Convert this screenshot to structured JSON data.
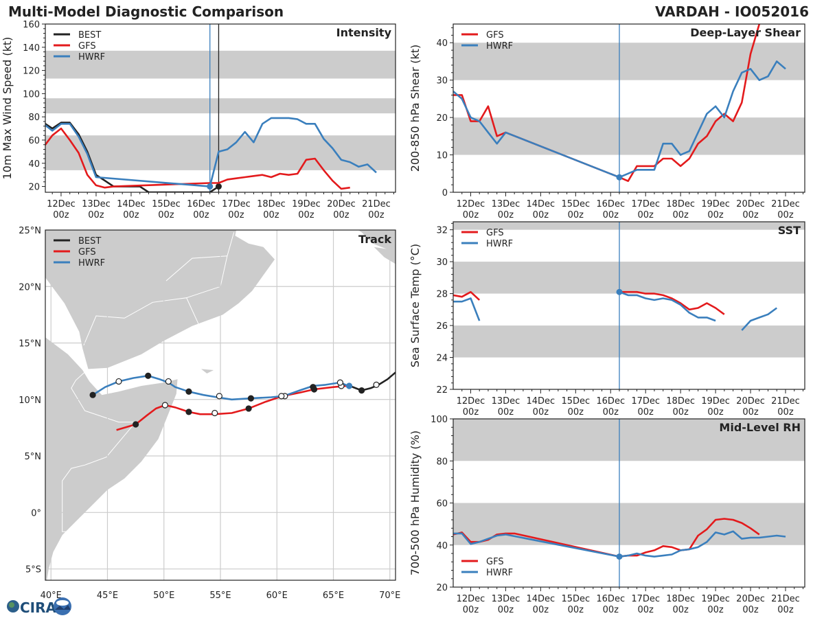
{
  "header": {
    "title": "Multi-Model Diagnostic Comparison",
    "storm": "VARDAH - IO052016"
  },
  "colors": {
    "BEST": "#222222",
    "GFS": "#e31a1c",
    "HWRF": "#3a7fbd",
    "band": "#cccccc",
    "grid": "#cccccc",
    "land": "#cccccc"
  },
  "logo": {
    "text": "CIRA"
  },
  "time_ticks": [
    "12Dec\n00z",
    "13Dec\n00z",
    "14Dec\n00z",
    "15Dec\n00z",
    "16Dec\n00z",
    "17Dec\n00z",
    "18Dec\n00z",
    "19Dec\n00z",
    "20Dec\n00z",
    "21Dec\n00z"
  ],
  "chart_data": [
    {
      "type": "line",
      "id": "intensity",
      "title": "Intensity",
      "xlabel": "",
      "ylabel": "10m Max Wind Speed (kt)",
      "x_unit": "days since 12Dec 00z",
      "xlim": [
        -0.45,
        9.55
      ],
      "ylim": [
        15,
        160
      ],
      "yticks": [
        20,
        40,
        60,
        80,
        100,
        120,
        140,
        160
      ],
      "bands": [
        [
          34,
          64
        ],
        [
          83,
          96
        ],
        [
          113,
          137
        ]
      ],
      "vlines": [
        {
          "x": 4.25,
          "color": "HWRF"
        },
        {
          "x": 4.5,
          "color": "BEST"
        }
      ],
      "legend": [
        "BEST",
        "GFS",
        "HWRF"
      ],
      "legend_position": "top-left",
      "series": [
        {
          "name": "BEST",
          "x": [
            -0.5,
            -0.25,
            0,
            0.25,
            0.5,
            0.75,
            1,
            1.25,
            1.5,
            1.75,
            2,
            2.25,
            2.5,
            2.75,
            3,
            3.25,
            3.5,
            3.75,
            4,
            4.25,
            4.5
          ],
          "y": [
            75,
            70,
            75,
            75,
            65,
            50,
            30,
            25,
            20,
            20,
            20,
            20,
            15,
            15,
            15,
            15,
            15,
            15,
            15,
            15,
            20
          ],
          "end_marker": true
        },
        {
          "name": "GFS",
          "x": [
            -0.5,
            -0.25,
            0,
            0.25,
            0.5,
            0.75,
            1,
            1.25,
            1.5,
            4.25,
            4.5,
            4.75,
            5,
            5.25,
            5.5,
            5.75,
            6,
            6.25,
            6.5,
            6.75,
            7,
            7.25,
            7.5,
            7.75,
            8,
            8.25
          ],
          "y": [
            54,
            64,
            70,
            60,
            49,
            30,
            21,
            19,
            20,
            23,
            23,
            26,
            27,
            28,
            29,
            30,
            28,
            31,
            30,
            31,
            43,
            44,
            34,
            25,
            18,
            19
          ]
        },
        {
          "name": "HWRF",
          "x": [
            -0.5,
            -0.25,
            0,
            0.25,
            0.5,
            0.75,
            1,
            4.25,
            4.5,
            4.75,
            5,
            5.25,
            5.5,
            5.75,
            6,
            6.25,
            6.5,
            6.75,
            7,
            7.25,
            7.5,
            7.75,
            8,
            8.25,
            8.5,
            8.75,
            9
          ],
          "y": [
            74,
            68,
            74,
            74,
            63,
            48,
            28,
            20,
            50,
            52,
            58,
            67,
            58,
            74,
            79,
            79,
            79,
            78,
            74,
            74,
            61,
            53,
            43,
            41,
            37,
            39,
            32
          ],
          "start_marker_at": 4.25
        }
      ]
    },
    {
      "type": "line",
      "id": "shear",
      "title": "Deep-Layer Shear",
      "ylabel": "200-850 hPa Shear (kt)",
      "xlim": [
        -0.5,
        9.55
      ],
      "ylim": [
        0,
        45
      ],
      "yticks": [
        0,
        10,
        20,
        30,
        40
      ],
      "bands": [
        [
          10,
          20
        ],
        [
          30,
          40
        ]
      ],
      "vlines": [
        {
          "x": 4.25,
          "color": "HWRF"
        }
      ],
      "legend": [
        "GFS",
        "HWRF"
      ],
      "legend_position": "top-left",
      "series": [
        {
          "name": "GFS",
          "x": [
            -0.5,
            -0.25,
            0,
            0.25,
            0.5,
            0.75,
            1,
            4.25,
            4.5,
            4.75,
            5,
            5.25,
            5.5,
            5.75,
            6,
            6.25,
            6.5,
            6.75,
            7,
            7.25,
            7.5,
            7.75,
            8,
            8.25
          ],
          "y": [
            26,
            26,
            19,
            19,
            23,
            15,
            16,
            4,
            3,
            7,
            7,
            7,
            9,
            9,
            7,
            9,
            13,
            15,
            19,
            21,
            19,
            24,
            37,
            45
          ]
        },
        {
          "name": "HWRF",
          "x": [
            -0.5,
            -0.25,
            0,
            0.25,
            0.5,
            0.75,
            1,
            4.25,
            4.5,
            4.75,
            5,
            5.25,
            5.5,
            5.75,
            6,
            6.25,
            6.5,
            6.75,
            7,
            7.25,
            7.5,
            7.75,
            8,
            8.25,
            8.5,
            8.75,
            9
          ],
          "y": [
            27,
            25,
            20,
            19,
            16,
            13,
            16,
            4,
            5,
            6,
            6,
            6,
            13,
            13,
            10,
            11,
            16,
            21,
            23,
            20,
            27,
            32,
            33,
            30,
            31,
            35,
            33
          ],
          "start_marker_at": 4.25
        }
      ]
    },
    {
      "type": "line",
      "id": "sst",
      "title": "SST",
      "ylabel": "Sea Surface Temp (°C)",
      "xlim": [
        -0.5,
        9.55
      ],
      "ylim": [
        22,
        32.5
      ],
      "yticks": [
        22,
        24,
        26,
        28,
        30,
        32
      ],
      "bands": [
        [
          24,
          26
        ],
        [
          28,
          30
        ],
        [
          32,
          32.5
        ]
      ],
      "vlines": [
        {
          "x": 4.25,
          "color": "HWRF"
        }
      ],
      "legend": [
        "GFS",
        "HWRF"
      ],
      "legend_position": "top-left",
      "series": [
        {
          "name": "GFS",
          "segments": [
            {
              "x": [
                -0.5,
                -0.25,
                0,
                0.25
              ],
              "y": [
                27.9,
                27.8,
                28.1,
                27.6
              ]
            },
            {
              "x": [
                4.25,
                4.5,
                4.75,
                5,
                5.25,
                5.5,
                5.75,
                6,
                6.25,
                6.5,
                6.75,
                7,
                7.25
              ],
              "y": [
                28.1,
                28.1,
                28.1,
                28.0,
                28.0,
                27.9,
                27.7,
                27.4,
                27.0,
                27.1,
                27.4,
                27.1,
                26.7
              ]
            }
          ]
        },
        {
          "name": "HWRF",
          "segments": [
            {
              "x": [
                -0.5,
                -0.25,
                0,
                0.25
              ],
              "y": [
                27.5,
                27.5,
                27.7,
                26.3
              ]
            },
            {
              "x": [
                4.25,
                4.5,
                4.75,
                5,
                5.25,
                5.5,
                5.75,
                6,
                6.25,
                6.5,
                6.75,
                7
              ],
              "y": [
                28.1,
                27.9,
                27.9,
                27.7,
                27.6,
                27.7,
                27.6,
                27.3,
                26.8,
                26.5,
                26.5,
                26.3
              ]
            },
            {
              "x": [
                7.75,
                8,
                8.25,
                8.5,
                8.75
              ],
              "y": [
                25.7,
                26.3,
                26.5,
                26.7,
                27.1
              ]
            }
          ],
          "start_marker_at": 4.25
        }
      ]
    },
    {
      "type": "line",
      "id": "rh",
      "title": "Mid-Level RH",
      "ylabel": "700-500 hPa Humidity (%)",
      "xlim": [
        -0.5,
        9.55
      ],
      "ylim": [
        20,
        100
      ],
      "yticks": [
        20,
        40,
        60,
        80,
        100
      ],
      "bands": [
        [
          40,
          60
        ],
        [
          80,
          100
        ]
      ],
      "vlines": [
        {
          "x": 4.25,
          "color": "HWRF"
        }
      ],
      "legend": [
        "GFS",
        "HWRF"
      ],
      "legend_position": "bottom-left",
      "series": [
        {
          "name": "GFS",
          "x": [
            -0.5,
            -0.25,
            0,
            0.25,
            0.5,
            0.75,
            1,
            1.25,
            4.25,
            4.5,
            4.75,
            5,
            5.25,
            5.5,
            5.75,
            6,
            6.25,
            6.5,
            6.75,
            7,
            7.25,
            7.5,
            7.75,
            8,
            8.25
          ],
          "y": [
            45,
            46,
            41.5,
            41.5,
            42.5,
            45,
            45.5,
            45.5,
            34.5,
            35,
            35,
            36.5,
            37.5,
            39.5,
            39,
            37.5,
            38,
            44.5,
            47.5,
            52,
            52.5,
            52,
            50.5,
            48,
            45
          ]
        },
        {
          "name": "HWRF",
          "x": [
            -0.5,
            -0.25,
            0,
            0.25,
            0.5,
            0.75,
            1,
            4.25,
            4.5,
            4.75,
            5,
            5.25,
            5.5,
            5.75,
            6,
            6.25,
            6.5,
            6.75,
            7,
            7.25,
            7.5,
            7.75,
            8,
            8.25,
            8.5,
            8.75,
            9
          ],
          "y": [
            45.5,
            45.5,
            40.5,
            41.5,
            43,
            44.5,
            45,
            34.5,
            35,
            36,
            35,
            34.5,
            35,
            35.5,
            37.5,
            38,
            39,
            41.5,
            46,
            45,
            46.5,
            43,
            43.5,
            43.5,
            44,
            44.5,
            44
          ],
          "start_marker_at": 4.25
        }
      ]
    },
    {
      "type": "map",
      "id": "track",
      "title": "Track",
      "lon_range": [
        39.5,
        70.5
      ],
      "lat_range": [
        -6,
        25
      ],
      "lon_ticks": [
        "40°E",
        "45°E",
        "50°E",
        "55°E",
        "60°E",
        "65°E",
        "70°E"
      ],
      "lat_ticks": [
        "25°N",
        "20°N",
        "15°N",
        "10°N",
        "5°N",
        "0°",
        "5°S"
      ],
      "lon_tick_values": [
        40,
        45,
        50,
        55,
        60,
        65,
        70
      ],
      "lat_tick_values": [
        25,
        20,
        15,
        10,
        5,
        0,
        -5
      ],
      "legend": [
        "BEST",
        "GFS",
        "HWRF"
      ],
      "legend_position": "top-left",
      "series": [
        {
          "name": "BEST",
          "points": [
            [
              66.2,
              11.3
            ],
            [
              67.5,
              10.8
            ],
            [
              68.3,
              11.0
            ],
            [
              69.0,
              11.3
            ],
            [
              69.8,
              11.8
            ],
            [
              70.5,
              12.4
            ]
          ],
          "markers": [
            {
              "lon": 67.5,
              "lat": 10.8,
              "fill": "dark"
            },
            {
              "lon": 68.8,
              "lat": 11.3,
              "fill": "white"
            }
          ]
        },
        {
          "name": "GFS",
          "points": [
            [
              45.8,
              7.3
            ],
            [
              47.5,
              7.8
            ],
            [
              48.5,
              8.6
            ],
            [
              49.3,
              9.2
            ],
            [
              50.1,
              9.5
            ],
            [
              51.0,
              9.3
            ],
            [
              52.2,
              8.9
            ],
            [
              53.2,
              8.7
            ],
            [
              54.5,
              8.7
            ],
            [
              56.0,
              8.8
            ],
            [
              57.5,
              9.2
            ],
            [
              59.0,
              9.8
            ],
            [
              60.5,
              10.3
            ],
            [
              62.0,
              10.6
            ],
            [
              63.3,
              10.9
            ],
            [
              65.0,
              11.1
            ],
            [
              66.2,
              11.2
            ]
          ],
          "markers": [
            {
              "lon": 47.5,
              "lat": 7.8,
              "fill": "dark"
            },
            {
              "lon": 50.1,
              "lat": 9.5,
              "fill": "white"
            },
            {
              "lon": 52.2,
              "lat": 8.9,
              "fill": "dark"
            },
            {
              "lon": 54.5,
              "lat": 8.8,
              "fill": "white"
            },
            {
              "lon": 57.5,
              "lat": 9.2,
              "fill": "dark"
            },
            {
              "lon": 60.7,
              "lat": 10.3,
              "fill": "white"
            },
            {
              "lon": 63.3,
              "lat": 10.9,
              "fill": "dark"
            },
            {
              "lon": 65.7,
              "lat": 11.2,
              "fill": "white"
            }
          ]
        },
        {
          "name": "HWRF",
          "points": [
            [
              43.7,
              10.4
            ],
            [
              44.8,
              11.1
            ],
            [
              46.0,
              11.6
            ],
            [
              47.3,
              11.9
            ],
            [
              48.6,
              12.1
            ],
            [
              49.6,
              11.8
            ],
            [
              50.4,
              11.5
            ],
            [
              51.0,
              11.1
            ],
            [
              52.2,
              10.7
            ],
            [
              53.5,
              10.4
            ],
            [
              54.7,
              10.2
            ],
            [
              56.0,
              10.0
            ],
            [
              57.7,
              10.1
            ],
            [
              59.5,
              10.2
            ],
            [
              60.6,
              10.3
            ],
            [
              62.0,
              10.8
            ],
            [
              63.2,
              11.2
            ],
            [
              64.3,
              11.3
            ],
            [
              65.6,
              11.5
            ],
            [
              66.3,
              11.2
            ]
          ],
          "markers": [
            {
              "lon": 43.7,
              "lat": 10.4,
              "fill": "dark"
            },
            {
              "lon": 46.0,
              "lat": 11.6,
              "fill": "white"
            },
            {
              "lon": 48.6,
              "lat": 12.1,
              "fill": "dark"
            },
            {
              "lon": 50.4,
              "lat": 11.6,
              "fill": "white"
            },
            {
              "lon": 52.2,
              "lat": 10.7,
              "fill": "dark"
            },
            {
              "lon": 54.9,
              "lat": 10.3,
              "fill": "white"
            },
            {
              "lon": 57.7,
              "lat": 10.1,
              "fill": "dark"
            },
            {
              "lon": 60.4,
              "lat": 10.3,
              "fill": "white"
            },
            {
              "lon": 63.2,
              "lat": 11.1,
              "fill": "dark"
            },
            {
              "lon": 65.6,
              "lat": 11.5,
              "fill": "white"
            },
            {
              "lon": 66.4,
              "lat": 11.2,
              "fill": "blue"
            }
          ]
        }
      ]
    }
  ]
}
